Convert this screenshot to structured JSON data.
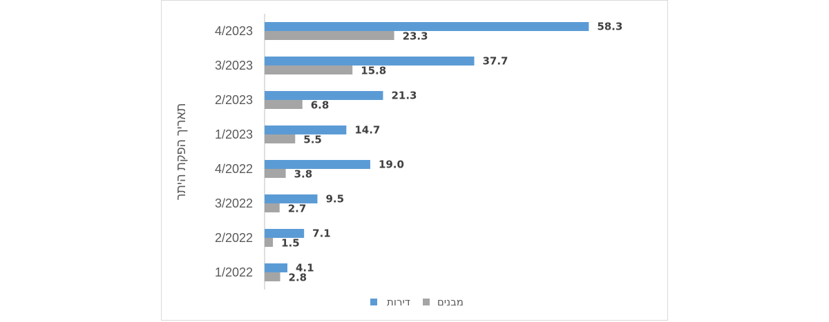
{
  "chart_data": {
    "type": "bar",
    "orientation": "horizontal",
    "categories": [
      "1/2022",
      "2/2022",
      "3/2022",
      "4/2022",
      "1/2023",
      "2/2023",
      "3/2023",
      "4/2023"
    ],
    "series": [
      {
        "name": "דירות",
        "color": "#5b9bd5",
        "values": [
          4.1,
          7.1,
          9.5,
          19.0,
          14.7,
          21.3,
          37.7,
          58.3
        ]
      },
      {
        "name": "מבנים",
        "color": "#a5a5a5",
        "values": [
          2.8,
          1.5,
          2.7,
          3.8,
          5.5,
          6.8,
          15.8,
          23.3
        ]
      }
    ],
    "value_labels": {
      "דירות": [
        "4.1",
        "7.1",
        "9.5",
        "19.0",
        "14.7",
        "21.3",
        "37.7",
        "58.3"
      ],
      "מבנים": [
        "2.8",
        "1.5",
        "2.7",
        "3.8",
        "5.5",
        "6.8",
        "15.8",
        "23.3"
      ]
    },
    "ylabel": "תאריך הפקת היתר",
    "xlabel": "",
    "xlim": [
      0,
      68
    ],
    "grid": false,
    "legend_position": "bottom-center"
  }
}
